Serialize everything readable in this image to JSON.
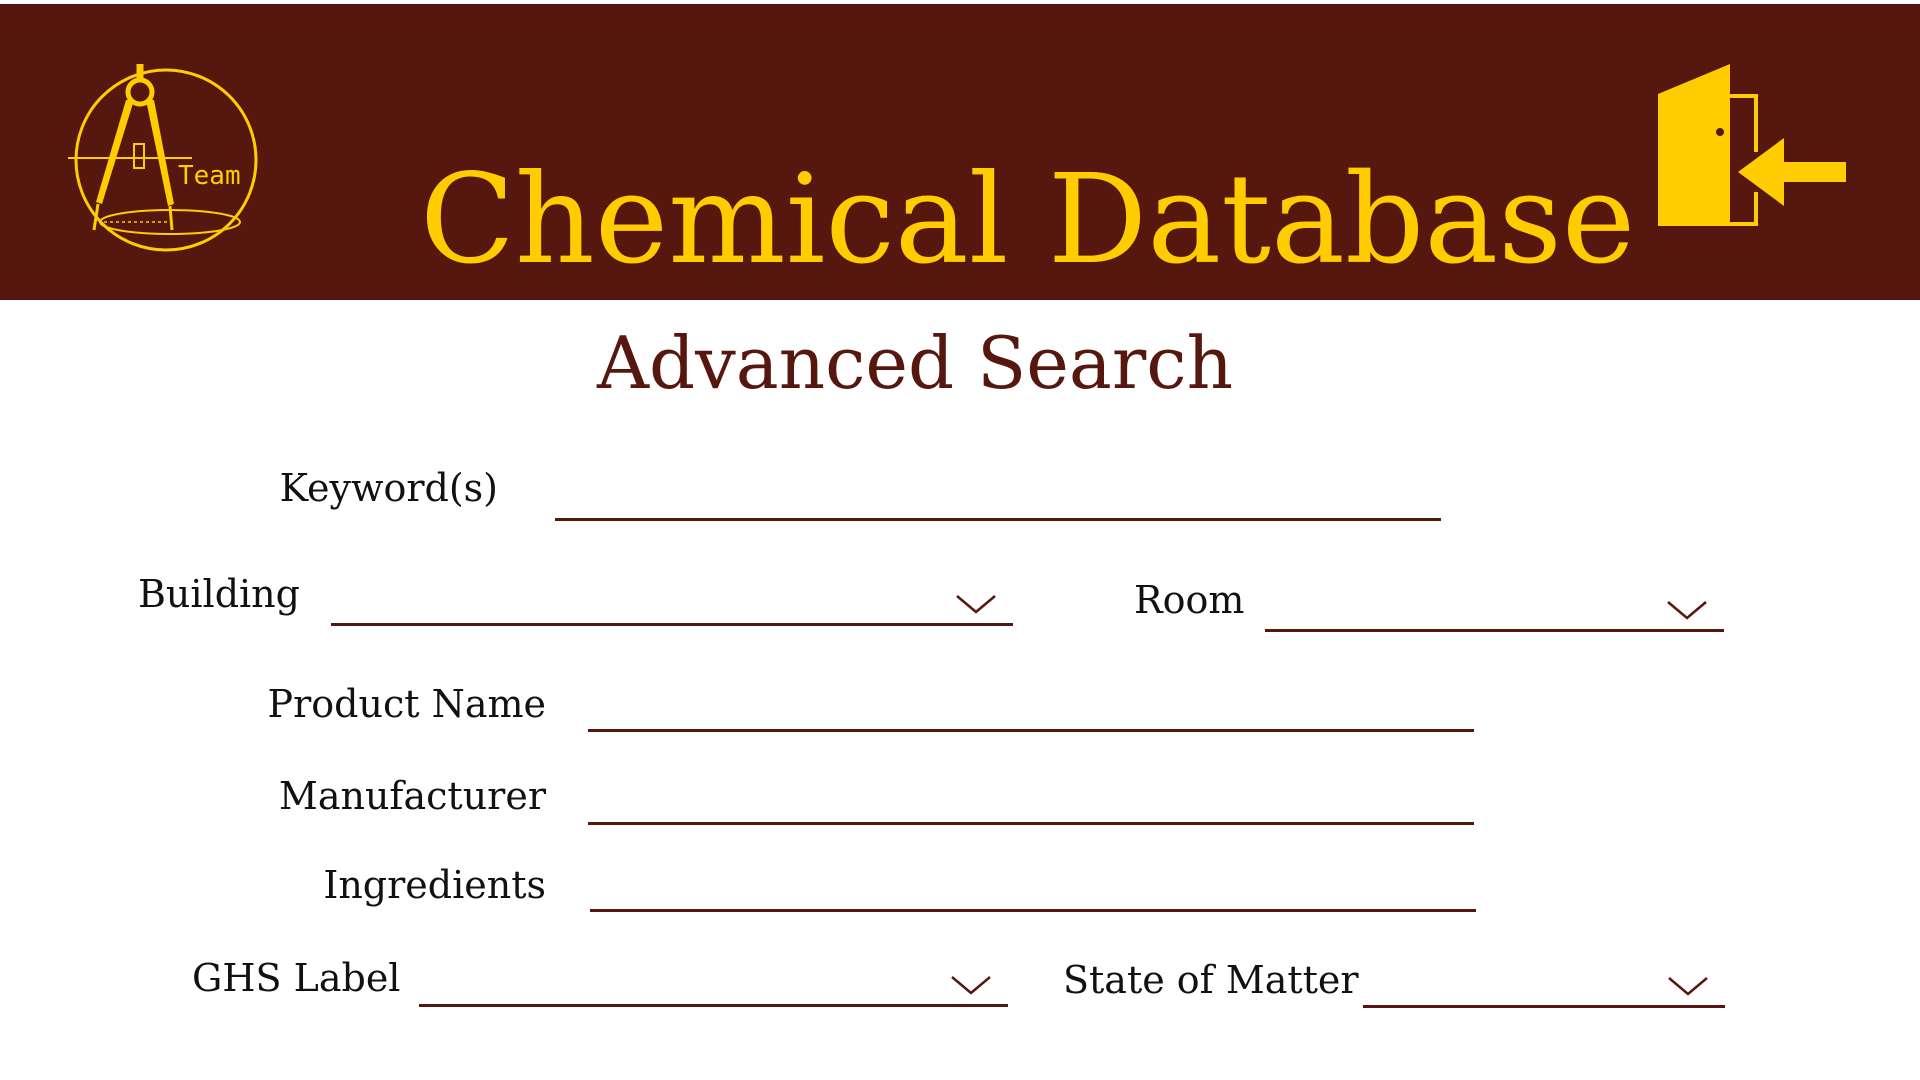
{
  "header": {
    "logo_text": "Team",
    "title": "Chemical Database",
    "logout_icon": "logout-door-arrow-icon"
  },
  "page": {
    "title": "Advanced Search"
  },
  "form": {
    "keywords": {
      "label": "Keyword(s)",
      "value": "",
      "placeholder": ""
    },
    "building": {
      "label": "Building",
      "value": ""
    },
    "room": {
      "label": "Room",
      "value": ""
    },
    "product_name": {
      "label": "Product Name",
      "value": "",
      "placeholder": ""
    },
    "manufacturer": {
      "label": "Manufacturer",
      "value": "",
      "placeholder": ""
    },
    "ingredients": {
      "label": "Ingredients",
      "value": "",
      "placeholder": ""
    },
    "ghs_label": {
      "label": "GHS Label",
      "value": ""
    },
    "state_of_matter": {
      "label": "State of Matter",
      "value": ""
    }
  },
  "colors": {
    "brand_maroon": "#56170f",
    "brand_gold": "#ffcc00",
    "background": "#ffffff"
  }
}
